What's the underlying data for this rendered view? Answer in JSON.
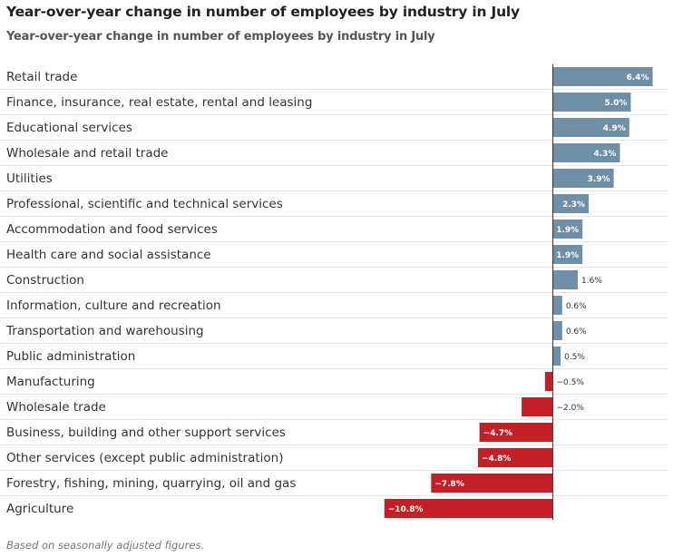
{
  "header": {
    "title": "Year-over-year change in number of employees by industry in July",
    "subtitle": "Year-over-year change in number of employees by industry in July"
  },
  "footer": {
    "note": "Based on seasonally adjusted figures."
  },
  "colors": {
    "positive": "#6f8fa6",
    "negative": "#c41e27",
    "zero_line": "#444444",
    "divider": "#e5e5e5"
  },
  "chart_data": {
    "type": "bar",
    "orientation": "horizontal",
    "title": "Year-over-year change in number of employees by industry in July",
    "xlabel": "",
    "ylabel": "",
    "unit": "%",
    "xlim": [
      -10.8,
      6.4
    ],
    "grid": false,
    "legend": "none",
    "categories": [
      "Retail trade",
      "Finance, insurance, real estate, rental and leasing",
      "Educational services",
      "Wholesale and retail trade",
      "Utilities",
      "Professional, scientific and technical services",
      "Accommodation and food services",
      "Health care and social assistance",
      "Construction",
      "Information, culture and recreation",
      "Transportation and warehousing",
      "Public administration",
      "Manufacturing",
      "Wholesale trade",
      "Business, building and other support services",
      "Other services (except public administration)",
      "Forestry, fishing, mining, quarrying, oil and gas",
      "Agriculture"
    ],
    "values": [
      6.4,
      5.0,
      4.9,
      4.3,
      3.9,
      2.3,
      1.9,
      1.9,
      1.6,
      0.6,
      0.6,
      0.5,
      -0.5,
      -2.0,
      -4.7,
      -4.8,
      -7.8,
      -10.8
    ],
    "labels": [
      "6.4%",
      "5.0%",
      "4.9%",
      "4.3%",
      "3.9%",
      "2.3%",
      "1.9%",
      "1.9%",
      "1.6%",
      "0.6%",
      "0.6%",
      "0.5%",
      "−0.5%",
      "−2.0%",
      "−4.7%",
      "−4.8%",
      "−7.8%",
      "−10.8%"
    ],
    "label_inside": [
      true,
      true,
      true,
      true,
      true,
      true,
      true,
      true,
      false,
      false,
      false,
      false,
      false,
      false,
      true,
      true,
      true,
      true
    ]
  }
}
